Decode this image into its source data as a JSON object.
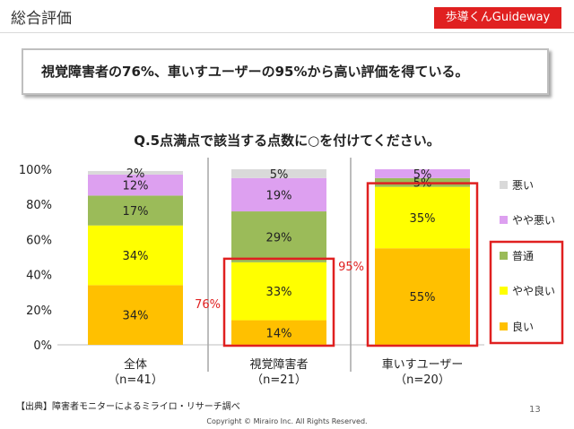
{
  "header": {
    "title": "総合評価",
    "brand": "歩導くんGuideway"
  },
  "summary": "視覚障害者の76%、車いすユーザーの95%から高い評価を得ている。",
  "chart_data": {
    "type": "bar",
    "stacked": true,
    "question": "Q.5点満点で該当する点数に○を付けてください。",
    "categories": [
      {
        "name": "全体",
        "n": "（n=41）"
      },
      {
        "name": "視覚障害者",
        "n": "（n=21）"
      },
      {
        "name": "車いすユーザー",
        "n": "（n=20）"
      }
    ],
    "series": [
      {
        "name": "良い",
        "color": "#ffc000",
        "values": [
          34,
          14,
          55
        ]
      },
      {
        "name": "やや良い",
        "color": "#ffff00",
        "values": [
          34,
          33,
          35
        ]
      },
      {
        "name": "普通",
        "color": "#9bbb59",
        "values": [
          17,
          29,
          5
        ]
      },
      {
        "name": "やや悪い",
        "color": "#dda0f0",
        "values": [
          12,
          19,
          5
        ]
      },
      {
        "name": "悪い",
        "color": "#d9d9d9",
        "values": [
          2,
          5,
          0
        ]
      }
    ],
    "data_labels": [
      [
        "34%",
        "34%",
        "17%",
        "12%",
        "2%"
      ],
      [
        "14%",
        "33%",
        "29%",
        "19%",
        "5%"
      ],
      [
        "55%",
        "35%",
        "5%",
        "5%",
        ""
      ]
    ],
    "ylim": [
      0,
      100
    ],
    "yticks": [
      "0%",
      "20%",
      "40%",
      "60%",
      "80%",
      "100%"
    ],
    "legend_order": [
      "悪い",
      "やや悪い",
      "普通",
      "やや良い",
      "良い"
    ],
    "legend_position": "right",
    "callouts": [
      {
        "category": 1,
        "label": "76%",
        "color": "#e02020"
      },
      {
        "category": 2,
        "label": "95%",
        "color": "#e02020"
      }
    ]
  },
  "footer": {
    "source": "【出典】障害者モニターによるミライロ・リサーチ調べ",
    "page": "13",
    "copyright": "Copyright © Mirairo Inc. All Rights Reserved."
  }
}
